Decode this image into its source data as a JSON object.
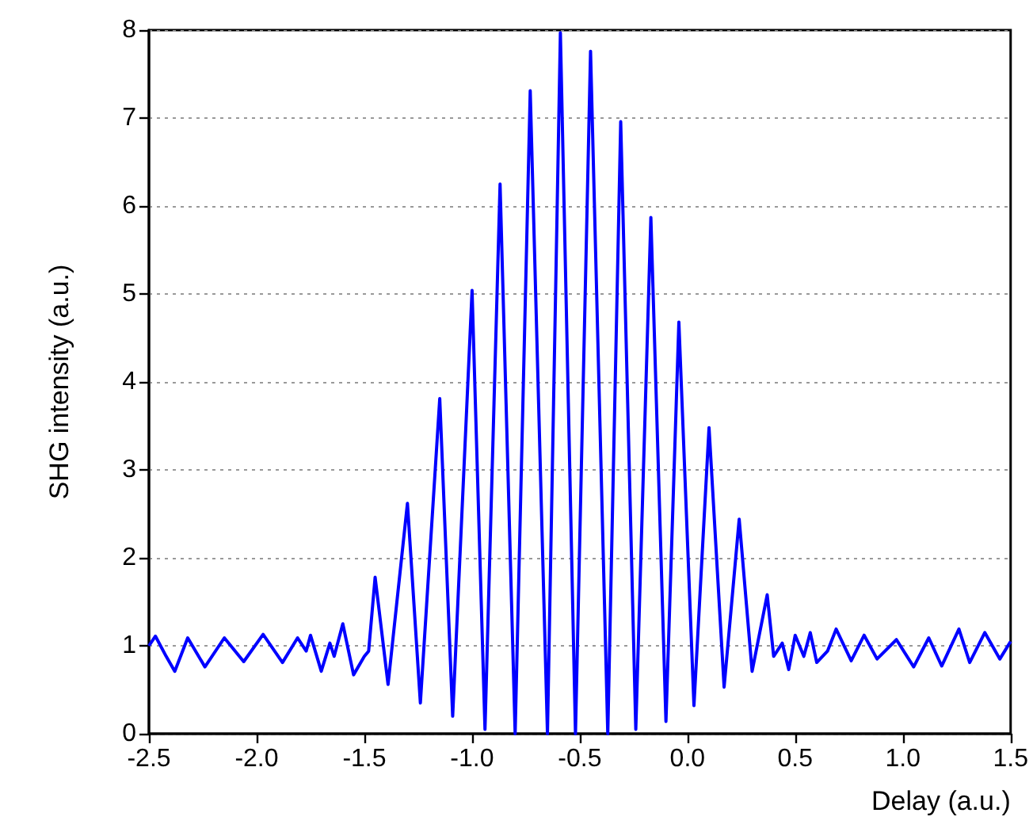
{
  "chart_data": {
    "type": "line",
    "xlabel": "Delay (a.u.)",
    "ylabel": "SHG intensity (a.u.)",
    "x": [
      -2.5,
      -2.47,
      -2.42,
      -2.38,
      -2.32,
      -2.24,
      -2.15,
      -2.06,
      -1.97,
      -1.88,
      -1.81,
      -1.77,
      -1.75,
      -1.7,
      -1.66,
      -1.64,
      -1.6,
      -1.55,
      -1.5,
      -1.48,
      -1.45,
      -1.39,
      -1.3,
      -1.24,
      -1.15,
      -1.09,
      -1.0,
      -0.94,
      -0.87,
      -0.8,
      -0.73,
      -0.65,
      -0.59,
      -0.52,
      -0.45,
      -0.37,
      -0.31,
      -0.24,
      -0.17,
      -0.1,
      -0.04,
      0.03,
      0.1,
      0.17,
      0.24,
      0.3,
      0.37,
      0.4,
      0.44,
      0.47,
      0.5,
      0.54,
      0.57,
      0.6,
      0.65,
      0.69,
      0.76,
      0.82,
      0.88,
      0.97,
      1.05,
      1.12,
      1.18,
      1.26,
      1.31,
      1.38,
      1.45,
      1.5
    ],
    "series": [
      {
        "color": "#0000ff",
        "values": [
          1.0,
          1.11,
          0.88,
          0.71,
          1.09,
          0.76,
          1.09,
          0.82,
          1.13,
          0.81,
          1.09,
          0.94,
          1.12,
          0.71,
          1.03,
          0.88,
          1.25,
          0.67,
          0.88,
          0.94,
          1.78,
          0.56,
          2.62,
          0.35,
          3.81,
          0.2,
          5.04,
          0.05,
          6.25,
          0.0,
          7.31,
          0.0,
          7.97,
          0.0,
          7.76,
          0.0,
          6.96,
          0.05,
          5.87,
          0.14,
          4.68,
          0.32,
          3.48,
          0.53,
          2.44,
          0.71,
          1.58,
          0.88,
          1.03,
          0.73,
          1.12,
          0.88,
          1.15,
          0.81,
          0.94,
          1.19,
          0.83,
          1.12,
          0.85,
          1.07,
          0.76,
          1.09,
          0.77,
          1.19,
          0.81,
          1.15,
          0.85,
          1.05
        ]
      }
    ],
    "xlim": [
      -2.5,
      1.5
    ],
    "xticks": [
      {
        "value": -2.5,
        "label": "-2.5"
      },
      {
        "value": -2,
        "label": "-2.0"
      },
      {
        "value": -1.5,
        "label": "-1.5"
      },
      {
        "value": -1,
        "label": "-1.0"
      },
      {
        "value": -0.5,
        "label": "-0.5"
      },
      {
        "value": 0,
        "label": "0.0"
      },
      {
        "value": 0.5,
        "label": "0.5"
      },
      {
        "value": 1,
        "label": "1.0"
      },
      {
        "value": 1.5,
        "label": "1.5"
      }
    ],
    "ylim": [
      0,
      8
    ],
    "yticks": [
      0,
      1,
      2,
      3,
      4,
      5,
      6,
      7,
      8
    ],
    "grid": "y"
  }
}
